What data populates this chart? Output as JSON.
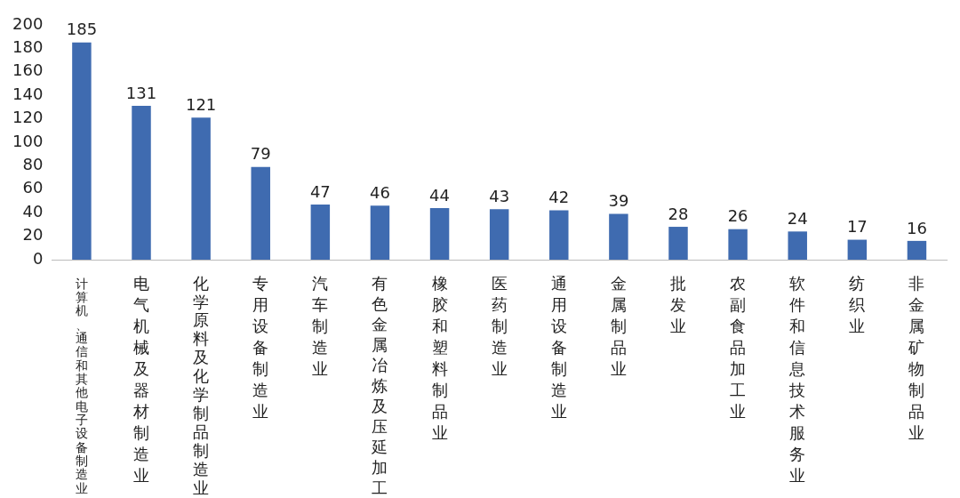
{
  "chart_data": {
    "type": "bar",
    "categories": [
      "计算机、通信和其他电子设备制造业",
      "电气机械及器材制造业",
      "化学原料及化学制品制造业",
      "专用设备制造业",
      "汽车制造业",
      "有色金属冶炼及压延加工",
      "橡胶和塑料制品业",
      "医药制造业",
      "通用设备制造业",
      "金属制品业",
      "批发业",
      "农副食品加工业",
      "软件和信息技术服务业",
      "纺织业",
      "非金属矿物制品业"
    ],
    "values": [
      185,
      131,
      121,
      79,
      47,
      46,
      44,
      43,
      42,
      39,
      28,
      26,
      24,
      17,
      16
    ],
    "color": "#3f6bb0",
    "ylim": [
      0,
      200
    ],
    "yticks": [
      0,
      20,
      40,
      60,
      80,
      100,
      120,
      140,
      160,
      180,
      200
    ],
    "data_labels": true,
    "grid": false,
    "legend": false
  }
}
